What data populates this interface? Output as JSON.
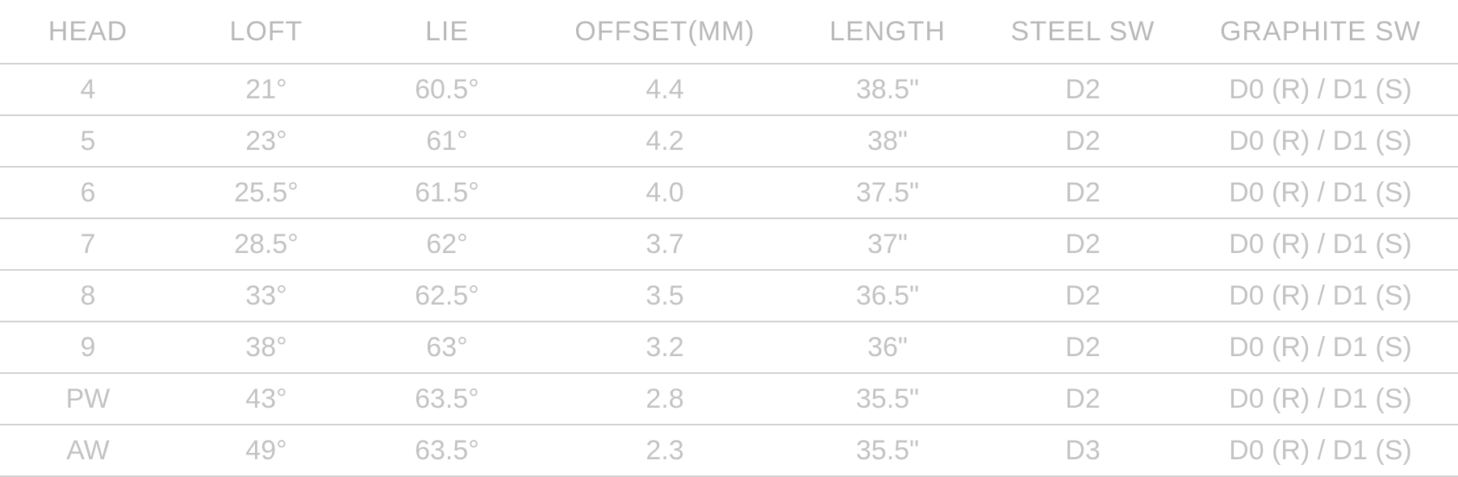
{
  "table": {
    "headers": [
      "HEAD",
      "LOFT",
      "LIE",
      "OFFSET(MM)",
      "LENGTH",
      "STEEL SW",
      "GRAPHITE SW"
    ],
    "rows": [
      [
        "4",
        "21°",
        "60.5°",
        "4.4",
        "38.5\"",
        "D2",
        "D0 (R) / D1 (S)"
      ],
      [
        "5",
        "23°",
        "61°",
        "4.2",
        "38\"",
        "D2",
        "D0 (R) / D1 (S)"
      ],
      [
        "6",
        "25.5°",
        "61.5°",
        "4.0",
        "37.5\"",
        "D2",
        "D0 (R) / D1 (S)"
      ],
      [
        "7",
        "28.5°",
        "62°",
        "3.7",
        "37\"",
        "D2",
        "D0 (R) / D1 (S)"
      ],
      [
        "8",
        "33°",
        "62.5°",
        "3.5",
        "36.5\"",
        "D2",
        "D0 (R) / D1 (S)"
      ],
      [
        "9",
        "38°",
        "63°",
        "3.2",
        "36\"",
        "D2",
        "D0 (R) / D1 (S)"
      ],
      [
        "PW",
        "43°",
        "63.5°",
        "2.8",
        "35.5\"",
        "D2",
        "D0 (R) / D1 (S)"
      ],
      [
        "AW",
        "49°",
        "63.5°",
        "2.3",
        "35.5\"",
        "D3",
        "D0 (R) / D1 (S)"
      ]
    ]
  }
}
